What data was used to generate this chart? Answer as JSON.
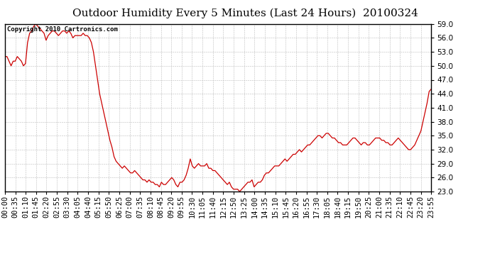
{
  "title": "Outdoor Humidity Every 5 Minutes (Last 24 Hours)  20100324",
  "copyright": "Copyright 2010 Cartronics.com",
  "line_color": "#cc0000",
  "bg_color": "#ffffff",
  "plot_bg_color": "#ffffff",
  "grid_color": "#bbbbbb",
  "grid_style": "--",
  "ylim": [
    23.0,
    59.0
  ],
  "ytick_step": 3.0,
  "yticks": [
    23.0,
    26.0,
    29.0,
    32.0,
    35.0,
    38.0,
    41.0,
    44.0,
    47.0,
    50.0,
    53.0,
    56.0,
    59.0
  ],
  "title_fontsize": 11,
  "tick_fontsize": 7.5,
  "copyright_fontsize": 6.5,
  "x_labels": [
    "00:00",
    "00:35",
    "01:10",
    "01:45",
    "02:20",
    "02:55",
    "03:30",
    "04:05",
    "04:40",
    "05:15",
    "05:50",
    "06:25",
    "07:00",
    "07:35",
    "08:10",
    "08:45",
    "09:20",
    "09:55",
    "10:30",
    "11:05",
    "11:40",
    "12:15",
    "12:50",
    "13:25",
    "14:00",
    "14:35",
    "15:10",
    "15:45",
    "16:20",
    "16:55",
    "17:30",
    "18:05",
    "18:40",
    "19:15",
    "19:50",
    "20:25",
    "21:00",
    "21:35",
    "22:10",
    "22:45",
    "23:20",
    "23:55"
  ],
  "humidity_values": [
    52.0,
    52.0,
    51.0,
    50.0,
    51.0,
    51.0,
    52.0,
    51.5,
    51.0,
    50.0,
    50.5,
    55.0,
    57.0,
    57.5,
    58.5,
    59.0,
    58.5,
    58.0,
    57.5,
    57.0,
    55.5,
    56.5,
    57.0,
    57.5,
    57.5,
    57.0,
    56.5,
    57.0,
    57.5,
    57.5,
    57.0,
    57.5,
    57.0,
    56.0,
    56.5,
    56.5,
    56.5,
    56.5,
    57.0,
    56.5,
    56.5,
    56.0,
    55.0,
    53.0,
    50.0,
    47.0,
    44.0,
    42.0,
    40.0,
    38.0,
    36.0,
    34.0,
    32.5,
    30.5,
    29.5,
    29.0,
    28.5,
    28.0,
    28.5,
    28.0,
    27.5,
    27.0,
    27.0,
    27.5,
    27.0,
    26.5,
    26.0,
    25.5,
    25.5,
    25.0,
    25.5,
    25.0,
    25.0,
    24.5,
    24.5,
    24.0,
    25.0,
    24.5,
    24.5,
    25.0,
    25.5,
    26.0,
    25.5,
    24.5,
    24.0,
    25.0,
    25.0,
    25.5,
    26.5,
    28.0,
    30.0,
    28.5,
    28.0,
    28.5,
    29.0,
    28.5,
    28.5,
    28.5,
    29.0,
    28.0,
    28.0,
    27.5,
    27.5,
    27.0,
    26.5,
    26.0,
    25.5,
    25.0,
    24.5,
    25.0,
    24.0,
    23.5,
    23.5,
    23.5,
    23.0,
    23.5,
    24.0,
    24.5,
    25.0,
    25.0,
    25.5,
    24.0,
    24.5,
    25.0,
    25.0,
    25.5,
    26.5,
    27.0,
    27.0,
    27.5,
    28.0,
    28.5,
    28.5,
    28.5,
    29.0,
    29.5,
    30.0,
    29.5,
    30.0,
    30.5,
    31.0,
    31.0,
    31.5,
    32.0,
    31.5,
    32.0,
    32.5,
    33.0,
    33.0,
    33.5,
    34.0,
    34.5,
    35.0,
    35.0,
    34.5,
    35.0,
    35.5,
    35.5,
    35.0,
    34.5,
    34.5,
    34.0,
    33.5,
    33.5,
    33.0,
    33.0,
    33.0,
    33.5,
    34.0,
    34.5,
    34.5,
    34.0,
    33.5,
    33.0,
    33.5,
    33.5,
    33.0,
    33.0,
    33.5,
    34.0,
    34.5,
    34.5,
    34.5,
    34.0,
    34.0,
    33.5,
    33.5,
    33.0,
    33.0,
    33.5,
    34.0,
    34.5,
    34.0,
    33.5,
    33.0,
    32.5,
    32.0,
    32.0,
    32.5,
    33.0,
    34.0,
    35.0,
    36.0,
    38.0,
    40.0,
    42.0,
    44.5,
    45.0
  ]
}
